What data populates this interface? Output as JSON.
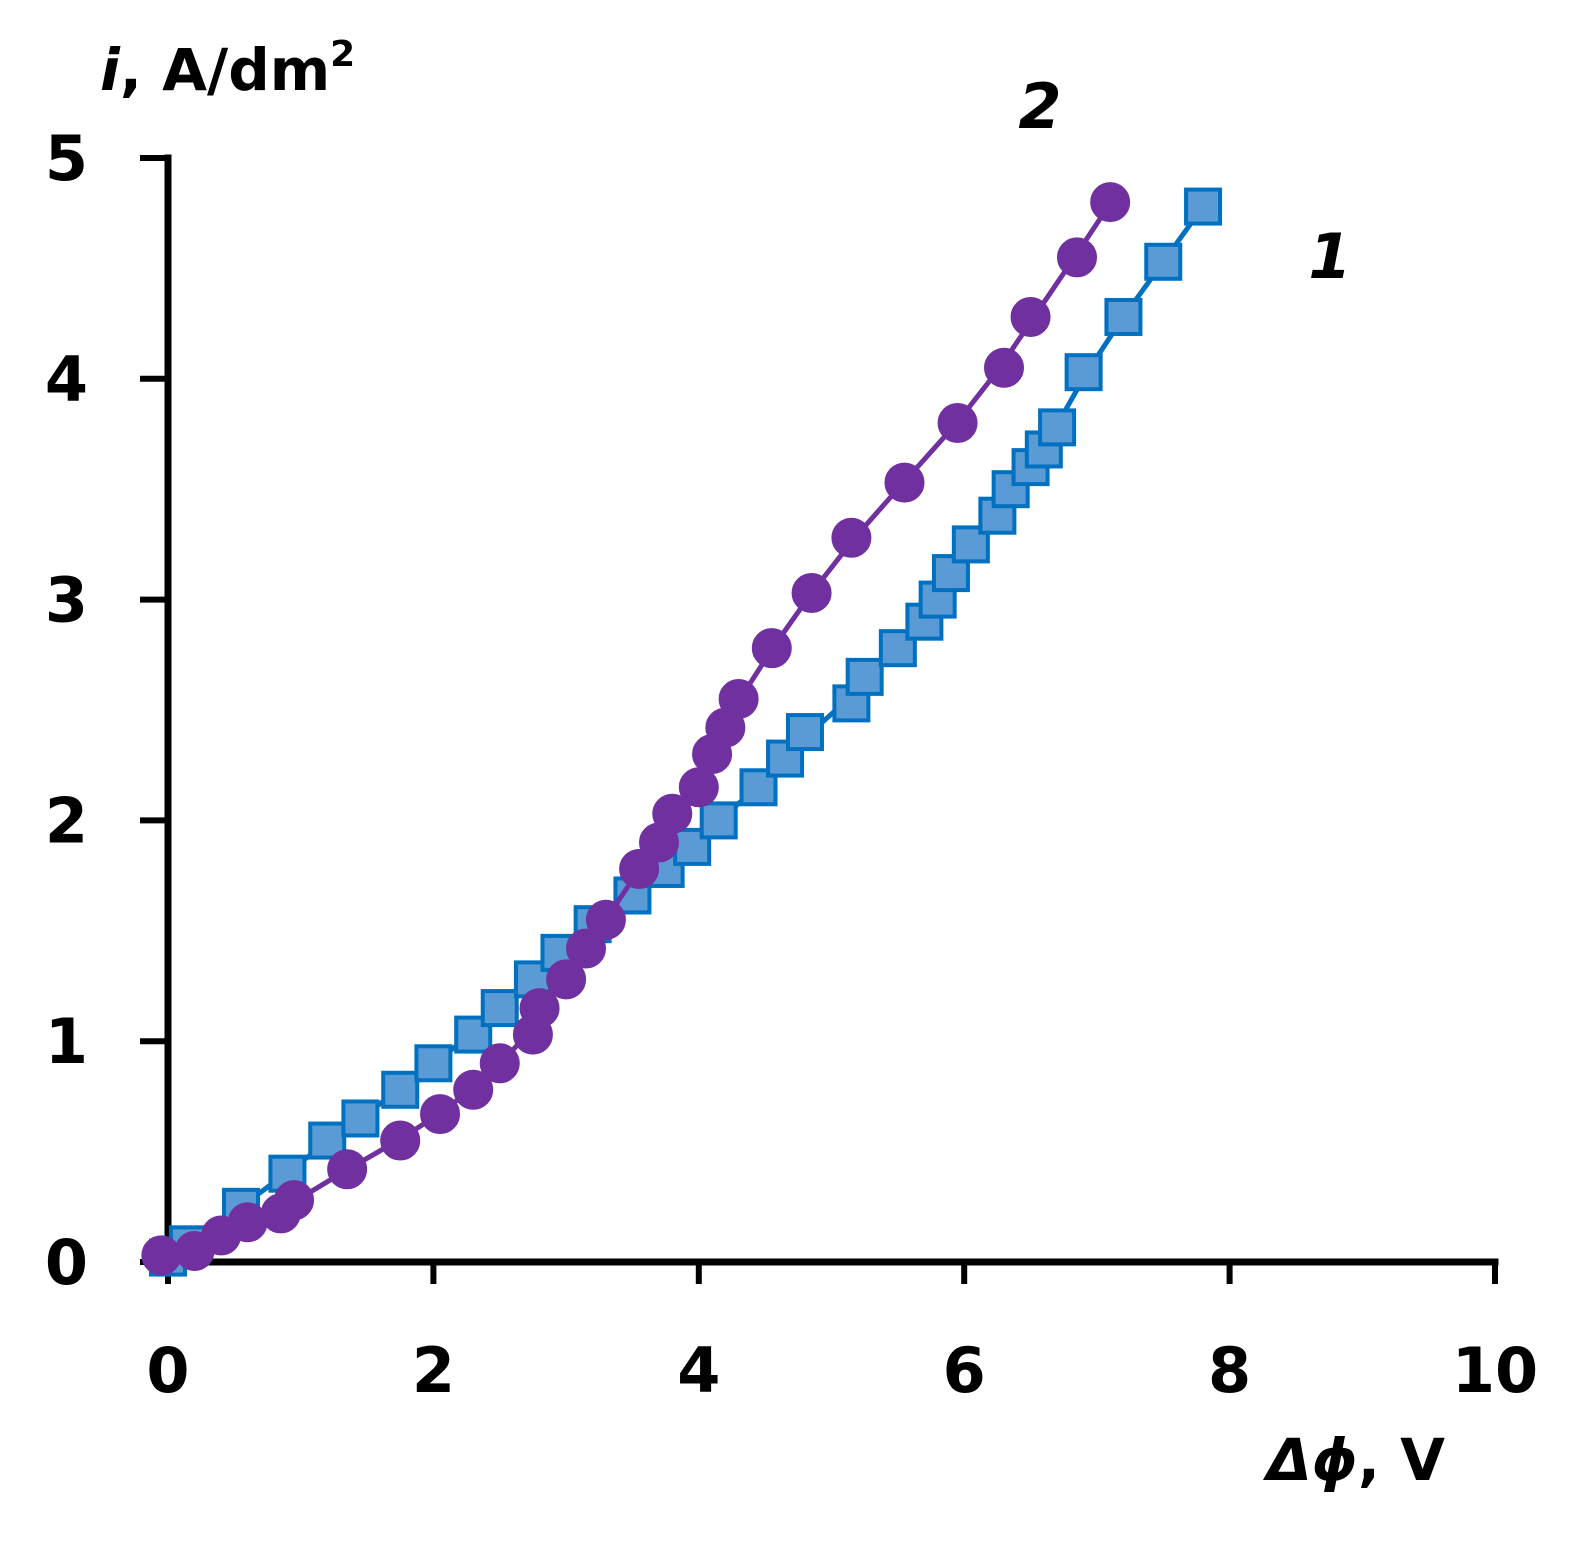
{
  "chart_data": {
    "type": "scatter",
    "xlabel_symbol": "Δϕ",
    "xlabel_unit": ", V",
    "ylabel_symbol": "i",
    "ylabel_unit": ", A/dm",
    "ylabel_sup": "2",
    "xlim": [
      0,
      10
    ],
    "ylim": [
      0,
      5
    ],
    "x_ticks": [
      0,
      2,
      4,
      6,
      8,
      10
    ],
    "y_ticks": [
      0,
      1,
      2,
      3,
      4,
      5
    ],
    "grid": false,
    "series": [
      {
        "name": "1",
        "marker": "square",
        "color": "#0070C0",
        "fill": "#5B9BD5",
        "x": [
          0.0,
          0.15,
          0.55,
          0.9,
          1.2,
          1.45,
          1.75,
          2.0,
          2.3,
          2.5,
          2.75,
          2.95,
          3.2,
          3.5,
          3.75,
          3.95,
          4.15,
          4.45,
          4.65,
          4.8,
          5.15,
          5.25,
          5.5,
          5.7,
          5.8,
          5.9,
          6.05,
          6.25,
          6.35,
          6.5,
          6.6,
          6.7,
          6.9,
          7.2,
          7.5,
          7.8
        ],
        "y": [
          0.02,
          0.08,
          0.25,
          0.4,
          0.55,
          0.65,
          0.78,
          0.9,
          1.03,
          1.15,
          1.28,
          1.4,
          1.53,
          1.66,
          1.78,
          1.88,
          2.0,
          2.15,
          2.28,
          2.4,
          2.53,
          2.65,
          2.78,
          2.9,
          3.0,
          3.12,
          3.25,
          3.38,
          3.5,
          3.6,
          3.68,
          3.78,
          4.03,
          4.28,
          4.53,
          4.78
        ]
      },
      {
        "name": "2",
        "marker": "circle",
        "color": "#7030A0",
        "fill": "#7030A0",
        "x": [
          -0.05,
          0.2,
          0.4,
          0.6,
          0.85,
          0.95,
          1.35,
          1.75,
          2.05,
          2.3,
          2.5,
          2.75,
          2.8,
          3.0,
          3.15,
          3.3,
          3.55,
          3.7,
          3.8,
          4.0,
          4.1,
          4.2,
          4.3,
          4.55,
          4.85,
          5.15,
          5.55,
          5.95,
          6.3,
          6.5,
          6.85,
          7.1
        ],
        "y": [
          0.03,
          0.05,
          0.12,
          0.18,
          0.22,
          0.28,
          0.42,
          0.55,
          0.67,
          0.78,
          0.9,
          1.03,
          1.15,
          1.28,
          1.42,
          1.55,
          1.78,
          1.9,
          2.03,
          2.15,
          2.3,
          2.42,
          2.55,
          2.78,
          3.03,
          3.28,
          3.53,
          3.8,
          4.05,
          4.28,
          4.55,
          4.8
        ]
      }
    ]
  }
}
